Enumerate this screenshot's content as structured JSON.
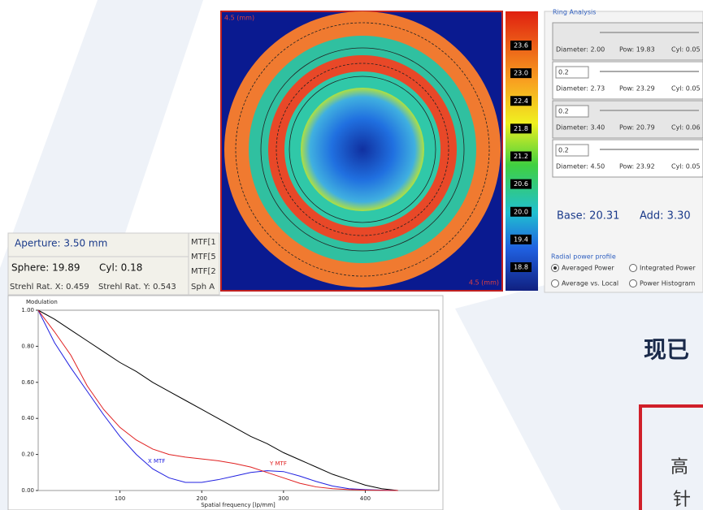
{
  "chart_data": {
    "type": "line",
    "ylabel": "Modulation",
    "xlabel": "Spatial frequency [lp/mm]",
    "x": [
      0,
      20,
      40,
      60,
      80,
      100,
      120,
      140,
      160,
      180,
      200,
      220,
      240,
      260,
      280,
      300,
      320,
      340,
      360,
      380,
      400,
      420,
      440
    ],
    "series": [
      {
        "color": "#000000",
        "values": [
          1,
          0.95,
          0.89,
          0.83,
          0.77,
          0.71,
          0.66,
          0.6,
          0.55,
          0.5,
          0.45,
          0.4,
          0.35,
          0.3,
          0.26,
          0.21,
          0.17,
          0.13,
          0.09,
          0.06,
          0.03,
          0.01,
          0
        ]
      },
      {
        "name": "X MTF",
        "color": "#2020e0",
        "values": [
          1,
          0.82,
          0.68,
          0.55,
          0.42,
          0.3,
          0.2,
          0.12,
          0.07,
          0.045,
          0.045,
          0.06,
          0.08,
          0.1,
          0.11,
          0.105,
          0.08,
          0.05,
          0.025,
          0.01,
          0.005,
          0.002,
          0
        ]
      },
      {
        "name": "Y MTF",
        "color": "#e02020",
        "values": [
          1,
          0.88,
          0.75,
          0.58,
          0.45,
          0.35,
          0.28,
          0.23,
          0.2,
          0.185,
          0.175,
          0.165,
          0.15,
          0.13,
          0.1,
          0.07,
          0.04,
          0.02,
          0.01,
          0.005,
          0.002,
          0.001,
          0
        ]
      }
    ],
    "xlim": [
      0,
      490
    ],
    "xticks": [
      100,
      200,
      300,
      400
    ],
    "ylim": [
      0,
      1
    ],
    "yticks": [
      {
        "value": 0,
        "label": "0.00"
      },
      {
        "value": 0.2,
        "label": "0.20"
      },
      {
        "value": 0.4,
        "label": "0.40"
      },
      {
        "value": 0.6,
        "label": "0.60"
      },
      {
        "value": 0.8,
        "label": "0.80"
      },
      {
        "value": 1,
        "label": "1.00"
      }
    ]
  },
  "power_map": {
    "label_top": "4.5 (mm)",
    "label_bottom": "4.5 (mm)",
    "colorbar_ticks": [
      23.6,
      {
        "value": 23,
        "label": "23.0"
      },
      22.4,
      21.8,
      21.2,
      20.6,
      {
        "value": 20,
        "label": "20.0"
      },
      19.4,
      18.8
    ]
  },
  "ring_analysis": {
    "title": "Ring Analysis",
    "rings": [
      {
        "diameter": "Diameter: 2.00",
        "pow": "Pow: 19.83",
        "cyl": "Cyl: 0.05"
      },
      {
        "input": "0.2",
        "diameter": "Diameter: 2.73",
        "pow": "Pow: 23.29",
        "cyl": "Cyl: 0.05"
      },
      {
        "input": "0.2",
        "diameter": "Diameter: 3.40",
        "pow": "Pow: 20.79",
        "cyl": "Cyl: 0.06"
      },
      {
        "input": "0.2",
        "diameter": "Diameter: 4.50",
        "pow": "Pow: 23.92",
        "cyl": "Cyl: 0.05"
      }
    ],
    "base": "Base: 20.31",
    "add": "Add: 3.30"
  },
  "radial_power_profile": {
    "title": "Radial power profile",
    "options": [
      "Averaged Power",
      "Integrated Power",
      "Average vs. Local",
      "Power Histogram"
    ]
  },
  "lens_info": {
    "aperture": "Aperture: 3.50 mm",
    "sphere": "Sphere: 19.89",
    "cyl": "Cyl: 0.18",
    "strehl_x": "Strehl Rat. X: 0.459",
    "strehl_y": "Strehl Rat. Y: 0.543",
    "column": [
      "MTF[1",
      "MTF[5",
      "MTF[2",
      "Sph A"
    ]
  },
  "slide_text": {
    "heading": "现已",
    "line1": "高",
    "line2": "针"
  }
}
